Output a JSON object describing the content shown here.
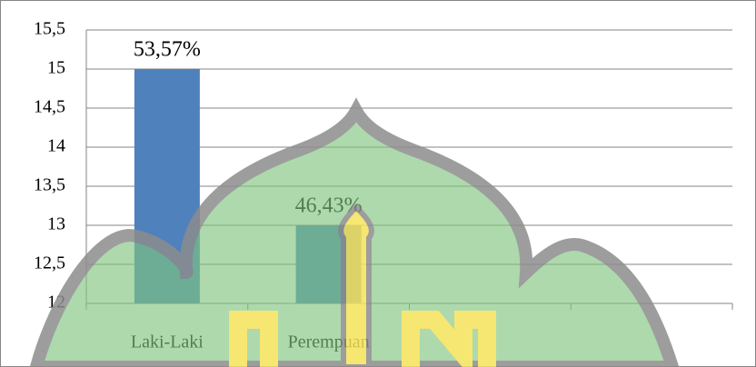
{
  "chart_data": {
    "type": "bar",
    "categories": [
      "Laki-Laki",
      "Perempuan",
      null,
      null
    ],
    "values": [
      15,
      13,
      null,
      null
    ],
    "annotations": [
      "53,57%",
      "46,43%"
    ],
    "color": "#4f81bd",
    "ylim": [
      12,
      15.5
    ],
    "yticks": [
      12,
      {
        "value": 12.5,
        "label": "12,5"
      },
      13,
      {
        "value": 13.5,
        "label": "13,5"
      },
      14,
      {
        "value": 14.5,
        "label": "14,5"
      },
      15,
      {
        "value": 15.5,
        "label": "15,5"
      }
    ],
    "grid": true
  }
}
